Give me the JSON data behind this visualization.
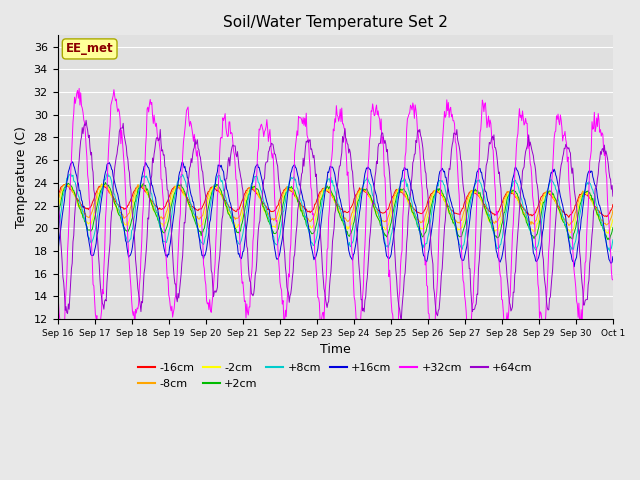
{
  "title": "Soil/Water Temperature Set 2",
  "xlabel": "Time",
  "ylabel": "Temperature (C)",
  "ylim": [
    12,
    37
  ],
  "yticks": [
    12,
    14,
    16,
    18,
    20,
    22,
    24,
    26,
    28,
    30,
    32,
    34,
    36
  ],
  "annotation": "EE_met",
  "annotation_color": "#8B0000",
  "annotation_bg": "#FFFF99",
  "annotation_edge": "#AAAA00",
  "series": [
    {
      "label": "-16cm",
      "color": "#FF0000",
      "amp": 1.0,
      "phase": 0.0,
      "mean": 22.8,
      "noise": 0.05
    },
    {
      "label": "-8cm",
      "color": "#FFA500",
      "amp": 1.4,
      "phase": 0.15,
      "mean": 22.5,
      "noise": 0.07
    },
    {
      "label": "-2cm",
      "color": "#FFFF00",
      "amp": 1.7,
      "phase": 0.3,
      "mean": 22.2,
      "noise": 0.08
    },
    {
      "label": "+2cm",
      "color": "#00BB00",
      "amp": 2.0,
      "phase": 0.5,
      "mean": 22.0,
      "noise": 0.08
    },
    {
      "label": "+8cm",
      "color": "#00CCCC",
      "amp": 2.8,
      "phase": 0.8,
      "mean": 22.0,
      "noise": 0.1
    },
    {
      "label": "+16cm",
      "color": "#0000DD",
      "amp": 3.8,
      "phase": 1.1,
      "mean": 22.0,
      "noise": 0.1
    },
    {
      "label": "+32cm",
      "color": "#FF00FF",
      "amp": 9.5,
      "phase": 2.2,
      "mean": 22.5,
      "noise": 0.5
    },
    {
      "label": "+64cm",
      "color": "#9900CC",
      "amp": 7.0,
      "phase": 3.2,
      "mean": 22.0,
      "noise": 0.3
    }
  ],
  "num_days": 15,
  "start_day": 16,
  "trend_rate": -0.05,
  "bg_color": "#E0E0E0",
  "grid_color": "#FFFFFF",
  "fig_bg": "#E8E8E8"
}
